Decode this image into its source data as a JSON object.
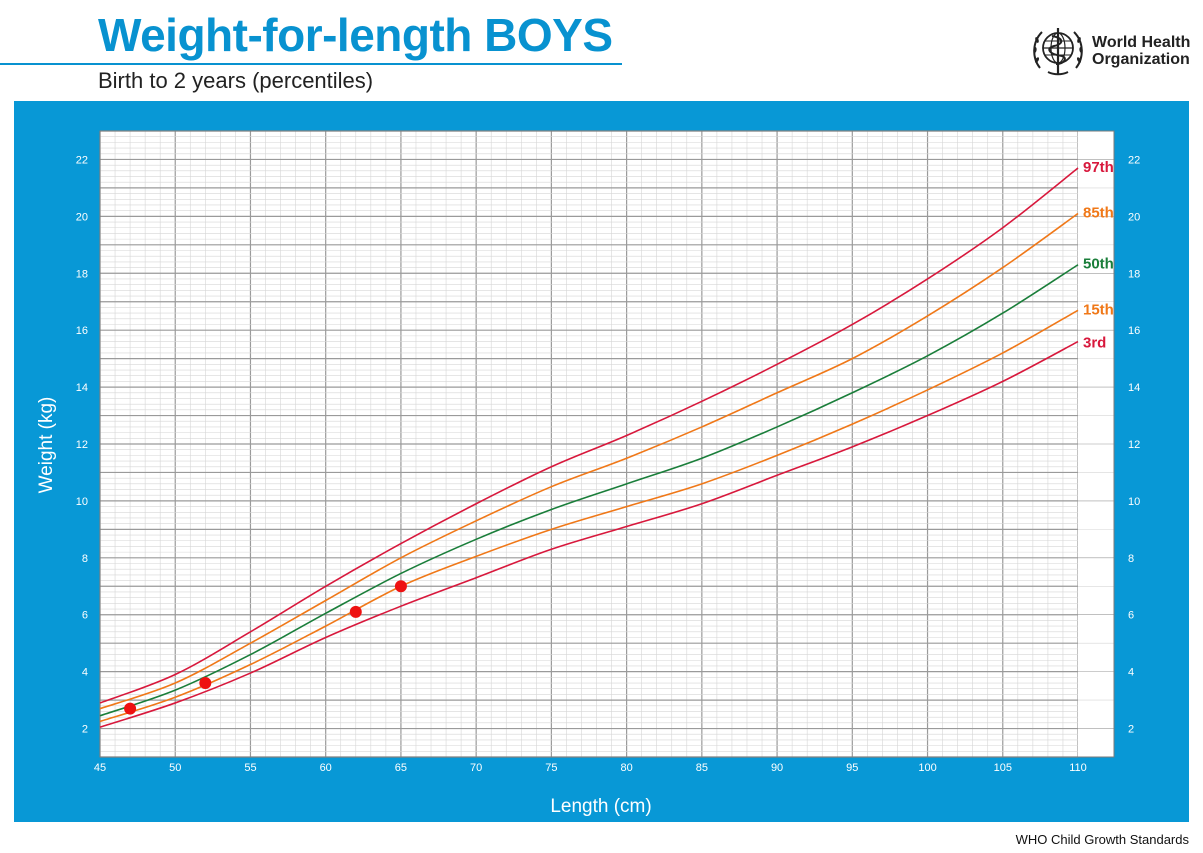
{
  "header": {
    "title": "Weight-for-length BOYS",
    "subtitle": "Birth to 2 years (percentiles)",
    "org_line1": "World Health",
    "org_line2": "Organization",
    "logo_icon": "who-emblem-icon"
  },
  "footer": {
    "text": "WHO Child Growth Standards"
  },
  "colors": {
    "panel": "#0898d6",
    "title": "#0892d0",
    "p97": "#d8183c",
    "p85": "#f07818",
    "p50": "#1a7e3a",
    "p15": "#f07818",
    "p3": "#d8183c",
    "points": "#ee1111"
  },
  "chart_data": {
    "type": "line",
    "xlabel": "Length (cm)",
    "ylabel": "Weight (kg)",
    "xlim": [
      45,
      110
    ],
    "ylim": [
      1,
      23
    ],
    "xticks": [
      45,
      50,
      55,
      60,
      65,
      70,
      75,
      80,
      85,
      90,
      95,
      100,
      105,
      110
    ],
    "yticks": [
      2,
      4,
      6,
      8,
      10,
      12,
      14,
      16,
      18,
      20,
      22
    ],
    "grid": true,
    "x": [
      45,
      50,
      55,
      60,
      65,
      70,
      75,
      80,
      85,
      90,
      95,
      100,
      105,
      110
    ],
    "series": [
      {
        "name": "97th",
        "color": "#d8183c",
        "values": [
          2.9,
          3.9,
          5.4,
          7.0,
          8.5,
          9.9,
          11.2,
          12.3,
          13.5,
          14.8,
          16.2,
          17.8,
          19.6,
          21.7
        ]
      },
      {
        "name": "85th",
        "color": "#f07818",
        "values": [
          2.7,
          3.6,
          5.0,
          6.5,
          8.0,
          9.3,
          10.5,
          11.5,
          12.6,
          13.8,
          15.0,
          16.5,
          18.2,
          20.1
        ]
      },
      {
        "name": "50th",
        "color": "#1a7e3a",
        "values": [
          2.45,
          3.35,
          4.6,
          6.05,
          7.45,
          8.65,
          9.7,
          10.6,
          11.5,
          12.6,
          13.8,
          15.1,
          16.6,
          18.3
        ]
      },
      {
        "name": "15th",
        "color": "#f07818",
        "values": [
          2.25,
          3.1,
          4.25,
          5.6,
          7.0,
          8.05,
          9.0,
          9.8,
          10.6,
          11.6,
          12.7,
          13.9,
          15.2,
          16.7
        ]
      },
      {
        "name": "3rd",
        "color": "#d8183c",
        "values": [
          2.05,
          2.9,
          3.95,
          5.2,
          6.3,
          7.3,
          8.3,
          9.1,
          9.9,
          10.9,
          11.9,
          13.0,
          14.2,
          15.6
        ]
      }
    ],
    "points": [
      {
        "x": 47,
        "y": 2.7
      },
      {
        "x": 52,
        "y": 3.6
      },
      {
        "x": 62,
        "y": 6.1
      },
      {
        "x": 65,
        "y": 7.0
      }
    ]
  }
}
